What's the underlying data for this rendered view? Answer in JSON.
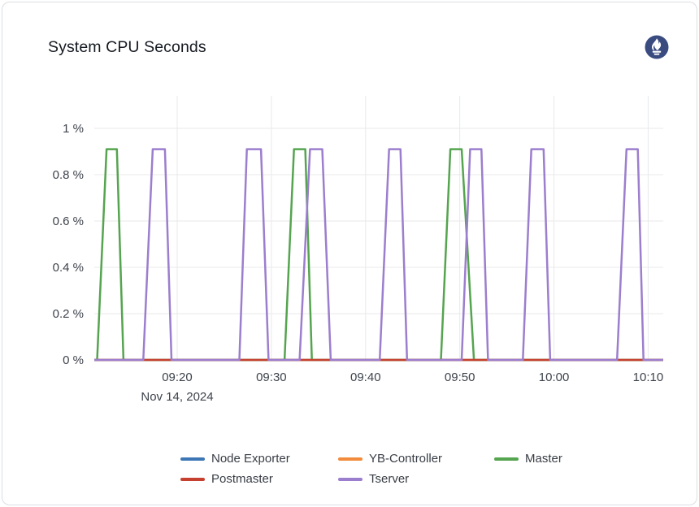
{
  "card": {
    "title": "System CPU Seconds",
    "logo": {
      "name": "prometheus-logo",
      "color": "#3a4b80"
    }
  },
  "chart_data": {
    "type": "line",
    "title": "System CPU Seconds",
    "xlabel": "",
    "ylabel": "",
    "date_label": "Nov 14, 2024",
    "x_unit": "minutes after 09:00 on Nov 14, 2024",
    "x_range": [
      11.2,
      71.6
    ],
    "ylim": [
      0,
      1.05
    ],
    "grid": true,
    "legend_position": "bottom",
    "peak_value_pct": 0.91,
    "y_ticks": [
      {
        "v": 0,
        "label": "0 %"
      },
      {
        "v": 0.2,
        "label": "0.2 %"
      },
      {
        "v": 0.4,
        "label": "0.4 %"
      },
      {
        "v": 0.6,
        "label": "0.6 %"
      },
      {
        "v": 0.8,
        "label": "0.8 %"
      },
      {
        "v": 1,
        "label": "1 %"
      }
    ],
    "x_ticks": [
      {
        "t": 20,
        "label": "09:20"
      },
      {
        "t": 30,
        "label": "09:30"
      },
      {
        "t": 40,
        "label": "09:40"
      },
      {
        "t": 50,
        "label": "09:50"
      },
      {
        "t": 60,
        "label": "10:00"
      },
      {
        "t": 70,
        "label": "10:10"
      }
    ],
    "series": [
      {
        "name": "Node Exporter",
        "color": "#3d76b5",
        "points": [
          [
            11.2,
            0
          ],
          [
            71.6,
            0
          ]
        ]
      },
      {
        "name": "YB-Controller",
        "color": "#f28b3c",
        "points": [
          [
            11.2,
            0
          ],
          [
            71.6,
            0
          ]
        ]
      },
      {
        "name": "Master",
        "color": "#55a44f",
        "points": [
          [
            11.2,
            0
          ],
          [
            11.5,
            0
          ],
          [
            12.5,
            0.91
          ],
          [
            13.6,
            0.91
          ],
          [
            14.3,
            0
          ],
          [
            31.4,
            0
          ],
          [
            32.4,
            0.91
          ],
          [
            33.6,
            0.91
          ],
          [
            34.3,
            0
          ],
          [
            48.0,
            0
          ],
          [
            49.0,
            0.91
          ],
          [
            50.2,
            0.91
          ],
          [
            51.5,
            0
          ],
          [
            71.6,
            0
          ]
        ]
      },
      {
        "name": "Postmaster",
        "color": "#c6402f",
        "points": [
          [
            11.2,
            0
          ],
          [
            71.6,
            0
          ]
        ]
      },
      {
        "name": "Tserver",
        "color": "#9c7ece",
        "points": [
          [
            11.2,
            0
          ],
          [
            16.4,
            0
          ],
          [
            17.4,
            0.91
          ],
          [
            18.7,
            0.91
          ],
          [
            19.4,
            0
          ],
          [
            26.6,
            0
          ],
          [
            27.4,
            0.91
          ],
          [
            28.9,
            0.91
          ],
          [
            29.7,
            0
          ],
          [
            33.0,
            0
          ],
          [
            34.1,
            0.91
          ],
          [
            35.4,
            0.91
          ],
          [
            36.3,
            0
          ],
          [
            41.5,
            0
          ],
          [
            42.5,
            0.91
          ],
          [
            43.7,
            0.91
          ],
          [
            44.4,
            0
          ],
          [
            50.2,
            0
          ],
          [
            51.1,
            0.91
          ],
          [
            52.3,
            0.91
          ],
          [
            53.0,
            0
          ],
          [
            56.7,
            0
          ],
          [
            57.6,
            0.91
          ],
          [
            58.9,
            0.91
          ],
          [
            59.6,
            0
          ],
          [
            66.7,
            0
          ],
          [
            67.7,
            0.91
          ],
          [
            68.9,
            0.91
          ],
          [
            69.5,
            0
          ],
          [
            71.6,
            0
          ]
        ]
      }
    ]
  }
}
